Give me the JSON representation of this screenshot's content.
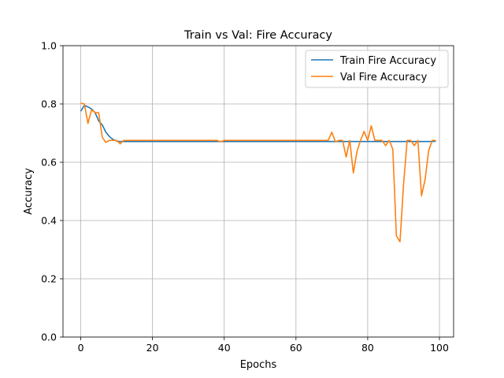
{
  "chart_data": {
    "type": "line",
    "title": "Train vs Val: Fire Accuracy",
    "xlabel": "Epochs",
    "ylabel": "Accuracy",
    "xlim": [
      -4.95,
      103.95
    ],
    "ylim": [
      0.0,
      1.0
    ],
    "xticks": [
      0,
      20,
      40,
      60,
      80,
      100
    ],
    "yticks": [
      0.0,
      0.2,
      0.4,
      0.6,
      0.8,
      1.0
    ],
    "xtick_labels": [
      "0",
      "20",
      "40",
      "60",
      "80",
      "100"
    ],
    "ytick_labels": [
      "0.0",
      "0.2",
      "0.4",
      "0.6",
      "0.8",
      "1.0"
    ],
    "grid": true,
    "legend_position": "top-right",
    "series": [
      {
        "name": "Train Fire Accuracy",
        "color": "#1f77b4",
        "x": [
          0,
          1,
          2,
          3,
          4,
          5,
          6,
          7,
          8,
          9,
          10,
          11,
          12,
          13,
          14,
          15,
          16,
          17,
          18,
          19,
          20,
          21,
          22,
          23,
          24,
          25,
          26,
          27,
          28,
          29,
          30,
          31,
          32,
          33,
          34,
          35,
          36,
          37,
          38,
          39,
          40,
          41,
          42,
          43,
          44,
          45,
          46,
          47,
          48,
          49,
          50,
          51,
          52,
          53,
          54,
          55,
          56,
          57,
          58,
          59,
          60,
          61,
          62,
          63,
          64,
          65,
          66,
          67,
          68,
          69,
          70,
          71,
          72,
          73,
          74,
          75,
          76,
          77,
          78,
          79,
          80,
          81,
          82,
          83,
          84,
          85,
          86,
          87,
          88,
          89,
          90,
          91,
          92,
          93,
          94,
          95,
          96,
          97,
          98,
          99
        ],
        "y": [
          0.775,
          0.795,
          0.79,
          0.783,
          0.77,
          0.742,
          0.728,
          0.703,
          0.688,
          0.678,
          0.673,
          0.671,
          0.671,
          0.671,
          0.671,
          0.671,
          0.671,
          0.671,
          0.671,
          0.671,
          0.671,
          0.671,
          0.671,
          0.671,
          0.671,
          0.671,
          0.671,
          0.671,
          0.671,
          0.671,
          0.671,
          0.671,
          0.671,
          0.671,
          0.671,
          0.671,
          0.671,
          0.671,
          0.671,
          0.671,
          0.671,
          0.671,
          0.671,
          0.671,
          0.671,
          0.671,
          0.671,
          0.671,
          0.671,
          0.671,
          0.671,
          0.671,
          0.671,
          0.671,
          0.671,
          0.671,
          0.671,
          0.671,
          0.671,
          0.671,
          0.671,
          0.671,
          0.671,
          0.671,
          0.671,
          0.671,
          0.671,
          0.671,
          0.671,
          0.671,
          0.671,
          0.671,
          0.671,
          0.671,
          0.671,
          0.671,
          0.671,
          0.671,
          0.671,
          0.671,
          0.671,
          0.671,
          0.671,
          0.671,
          0.671,
          0.671,
          0.671,
          0.671,
          0.671,
          0.671,
          0.671,
          0.671,
          0.671,
          0.671,
          0.671,
          0.671,
          0.671,
          0.671,
          0.671,
          0.672
        ]
      },
      {
        "name": "Val Fire Accuracy",
        "color": "#ff7f0e",
        "x": [
          0,
          1,
          2,
          3,
          4,
          5,
          6,
          7,
          8,
          9,
          10,
          11,
          12,
          13,
          14,
          15,
          16,
          17,
          18,
          19,
          20,
          21,
          22,
          23,
          24,
          25,
          26,
          27,
          28,
          29,
          30,
          31,
          32,
          33,
          34,
          35,
          36,
          37,
          38,
          39,
          40,
          41,
          42,
          43,
          44,
          45,
          46,
          47,
          48,
          49,
          50,
          51,
          52,
          53,
          54,
          55,
          56,
          57,
          58,
          59,
          60,
          61,
          62,
          63,
          64,
          65,
          66,
          67,
          68,
          69,
          70,
          71,
          72,
          73,
          74,
          75,
          76,
          77,
          78,
          79,
          80,
          81,
          82,
          83,
          84,
          85,
          86,
          87,
          88,
          89,
          90,
          91,
          92,
          93,
          94,
          95,
          96,
          97,
          98,
          99
        ],
        "y": [
          0.803,
          0.8,
          0.733,
          0.78,
          0.77,
          0.77,
          0.686,
          0.668,
          0.675,
          0.675,
          0.675,
          0.663,
          0.675,
          0.675,
          0.675,
          0.675,
          0.675,
          0.675,
          0.675,
          0.675,
          0.675,
          0.675,
          0.675,
          0.675,
          0.675,
          0.675,
          0.675,
          0.675,
          0.675,
          0.675,
          0.675,
          0.675,
          0.675,
          0.675,
          0.675,
          0.675,
          0.675,
          0.675,
          0.675,
          0.67,
          0.675,
          0.675,
          0.675,
          0.675,
          0.675,
          0.675,
          0.675,
          0.675,
          0.675,
          0.675,
          0.675,
          0.675,
          0.675,
          0.675,
          0.675,
          0.675,
          0.675,
          0.675,
          0.675,
          0.675,
          0.675,
          0.675,
          0.675,
          0.675,
          0.675,
          0.675,
          0.675,
          0.675,
          0.675,
          0.675,
          0.703,
          0.67,
          0.675,
          0.675,
          0.618,
          0.675,
          0.563,
          0.636,
          0.675,
          0.706,
          0.675,
          0.725,
          0.675,
          0.675,
          0.675,
          0.657,
          0.675,
          0.645,
          0.347,
          0.327,
          0.524,
          0.675,
          0.675,
          0.657,
          0.675,
          0.485,
          0.54,
          0.64,
          0.675,
          0.675
        ]
      }
    ]
  }
}
